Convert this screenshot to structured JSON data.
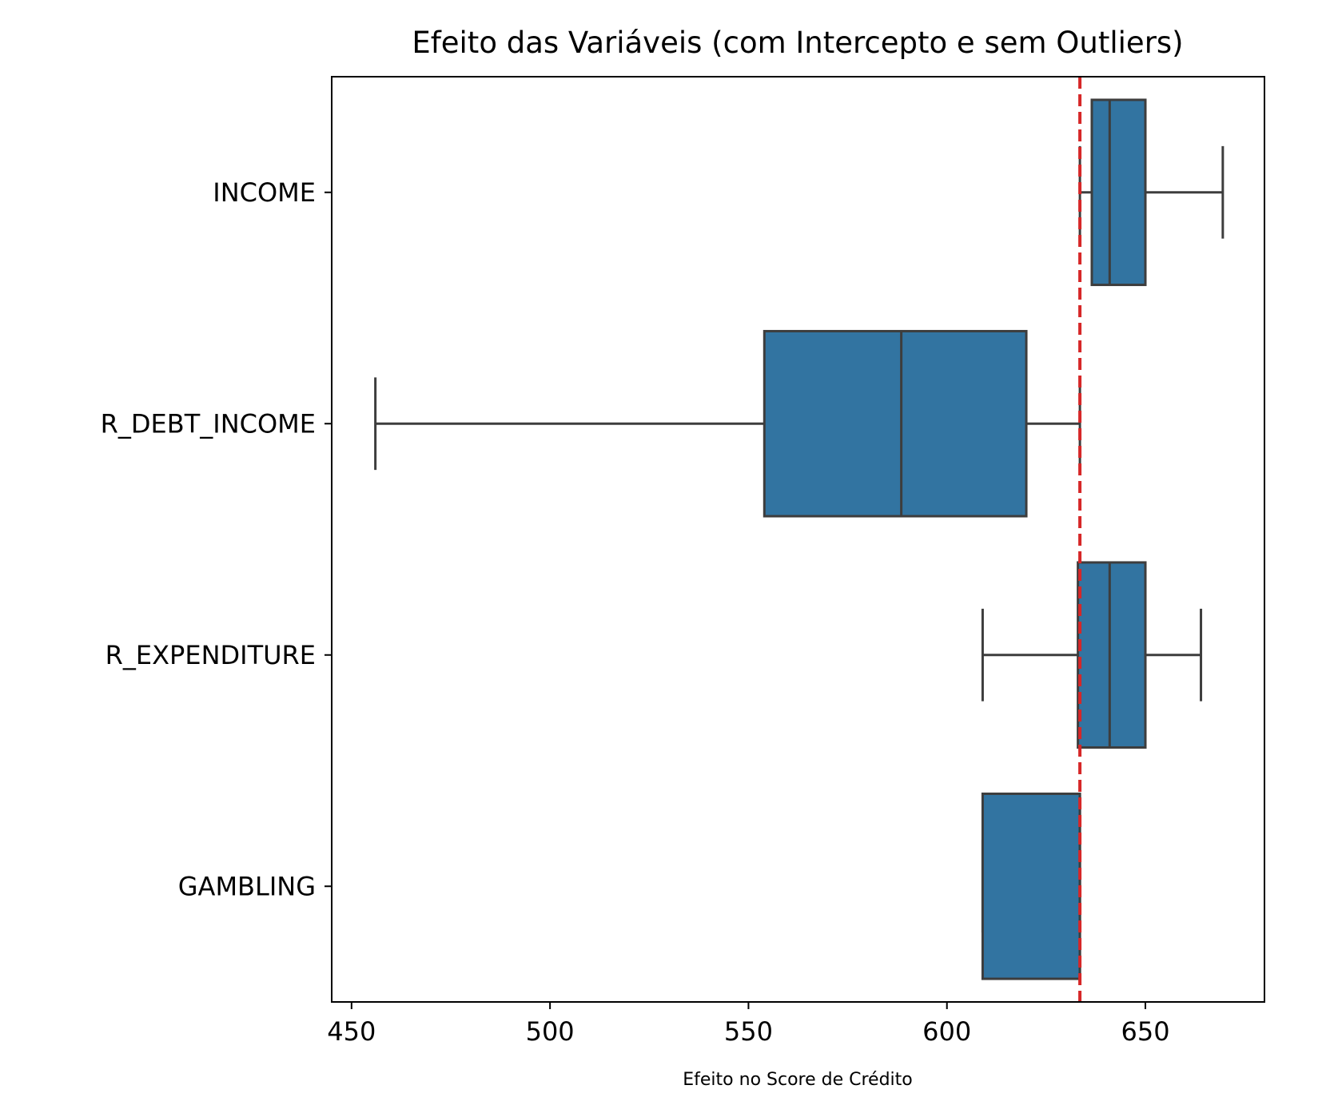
{
  "chart_data": {
    "type": "boxplot",
    "orientation": "horizontal",
    "title": "Efeito das Variáveis (com Intercepto e sem Outliers)",
    "xlabel": "Efeito no Score de Crédito",
    "ylabel": "",
    "xlim": [
      445,
      680
    ],
    "xticks": [
      450,
      500,
      550,
      600,
      650
    ],
    "grid": false,
    "categories": [
      "INCOME",
      "R_DEBT_INCOME",
      "R_EXPENDITURE",
      "GAMBLING"
    ],
    "boxes": [
      {
        "category": "INCOME",
        "whislo": 633.5,
        "q1": 636.5,
        "median": 641,
        "q3": 650,
        "whishi": 669.5
      },
      {
        "category": "R_DEBT_INCOME",
        "whislo": 456,
        "q1": 554,
        "median": 588.5,
        "q3": 620,
        "whishi": 633.5
      },
      {
        "category": "R_EXPENDITURE",
        "whislo": 609,
        "q1": 633,
        "median": 641,
        "q3": 650,
        "whishi": 664
      },
      {
        "category": "GAMBLING",
        "whislo": 609,
        "q1": 609,
        "median": 633.5,
        "q3": 633.5,
        "whishi": 633.5
      }
    ],
    "reference_line": {
      "x": 633.5,
      "style": "dashed",
      "color": "#d62728"
    },
    "box_color": "#3274a1",
    "edge_color": "#3d3d3d"
  }
}
